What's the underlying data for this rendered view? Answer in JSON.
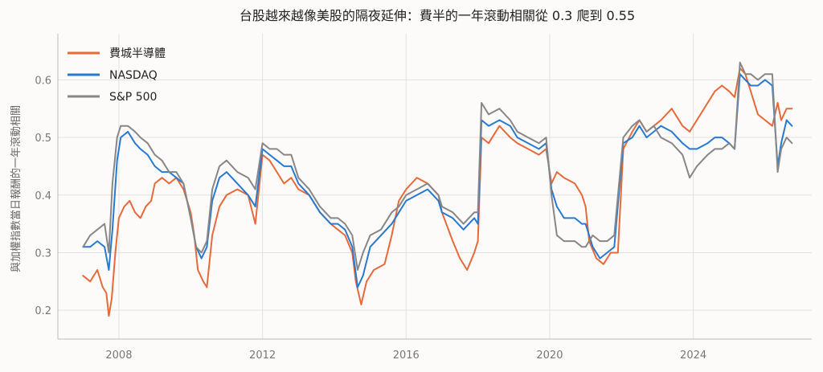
{
  "chart_data": {
    "type": "line",
    "title": "台股越來越像美股的隔夜延伸：費半的一年滾動相關從 0.3 爬到 0.55",
    "xlabel": "",
    "ylabel": "與加權指數當日報酬的一年滾動相關",
    "xlim": [
      2006.3,
      2027.3
    ],
    "ylim": [
      0.15,
      0.68
    ],
    "x_ticks": [
      2008,
      2012,
      2016,
      2020,
      2024
    ],
    "x_tick_labels": [
      "2008",
      "2012",
      "2016",
      "2020",
      "2024"
    ],
    "y_ticks": [
      0.2,
      0.3,
      0.4,
      0.5,
      0.6
    ],
    "y_tick_labels": [
      "0.2",
      "0.3",
      "0.4",
      "0.5",
      "0.6"
    ],
    "grid": true,
    "legend_position": "top-left",
    "series": [
      {
        "name": "費城半導體",
        "color": "#e8693a",
        "points": [
          [
            2007.0,
            0.26
          ],
          [
            2007.2,
            0.25
          ],
          [
            2007.4,
            0.27
          ],
          [
            2007.55,
            0.24
          ],
          [
            2007.65,
            0.23
          ],
          [
            2007.72,
            0.19
          ],
          [
            2007.8,
            0.22
          ],
          [
            2007.9,
            0.3
          ],
          [
            2008.0,
            0.36
          ],
          [
            2008.15,
            0.38
          ],
          [
            2008.3,
            0.39
          ],
          [
            2008.45,
            0.37
          ],
          [
            2008.6,
            0.36
          ],
          [
            2008.75,
            0.38
          ],
          [
            2008.9,
            0.39
          ],
          [
            2009.0,
            0.42
          ],
          [
            2009.2,
            0.43
          ],
          [
            2009.4,
            0.42
          ],
          [
            2009.6,
            0.43
          ],
          [
            2009.8,
            0.41
          ],
          [
            2010.0,
            0.37
          ],
          [
            2010.1,
            0.33
          ],
          [
            2010.2,
            0.27
          ],
          [
            2010.35,
            0.25
          ],
          [
            2010.45,
            0.24
          ],
          [
            2010.6,
            0.33
          ],
          [
            2010.8,
            0.38
          ],
          [
            2011.0,
            0.4
          ],
          [
            2011.3,
            0.41
          ],
          [
            2011.6,
            0.4
          ],
          [
            2011.8,
            0.35
          ],
          [
            2012.0,
            0.47
          ],
          [
            2012.2,
            0.46
          ],
          [
            2012.4,
            0.44
          ],
          [
            2012.6,
            0.42
          ],
          [
            2012.8,
            0.43
          ],
          [
            2013.0,
            0.41
          ],
          [
            2013.3,
            0.4
          ],
          [
            2013.6,
            0.37
          ],
          [
            2013.9,
            0.35
          ],
          [
            2014.1,
            0.34
          ],
          [
            2014.3,
            0.33
          ],
          [
            2014.5,
            0.3
          ],
          [
            2014.6,
            0.25
          ],
          [
            2014.75,
            0.21
          ],
          [
            2014.9,
            0.25
          ],
          [
            2015.1,
            0.27
          ],
          [
            2015.4,
            0.28
          ],
          [
            2015.6,
            0.33
          ],
          [
            2015.8,
            0.39
          ],
          [
            2016.0,
            0.41
          ],
          [
            2016.3,
            0.43
          ],
          [
            2016.6,
            0.42
          ],
          [
            2016.9,
            0.4
          ],
          [
            2017.0,
            0.37
          ],
          [
            2017.3,
            0.32
          ],
          [
            2017.5,
            0.29
          ],
          [
            2017.7,
            0.27
          ],
          [
            2017.9,
            0.3
          ],
          [
            2018.0,
            0.32
          ],
          [
            2018.1,
            0.5
          ],
          [
            2018.3,
            0.49
          ],
          [
            2018.6,
            0.52
          ],
          [
            2018.9,
            0.5
          ],
          [
            2019.1,
            0.49
          ],
          [
            2019.4,
            0.48
          ],
          [
            2019.7,
            0.47
          ],
          [
            2019.9,
            0.48
          ],
          [
            2020.05,
            0.42
          ],
          [
            2020.2,
            0.44
          ],
          [
            2020.4,
            0.43
          ],
          [
            2020.7,
            0.42
          ],
          [
            2020.9,
            0.4
          ],
          [
            2021.0,
            0.38
          ],
          [
            2021.1,
            0.32
          ],
          [
            2021.3,
            0.29
          ],
          [
            2021.5,
            0.28
          ],
          [
            2021.7,
            0.3
          ],
          [
            2021.9,
            0.3
          ],
          [
            2022.05,
            0.48
          ],
          [
            2022.3,
            0.51
          ],
          [
            2022.5,
            0.53
          ],
          [
            2022.7,
            0.51
          ],
          [
            2022.9,
            0.52
          ],
          [
            2023.1,
            0.53
          ],
          [
            2023.4,
            0.55
          ],
          [
            2023.7,
            0.52
          ],
          [
            2023.9,
            0.51
          ],
          [
            2024.1,
            0.53
          ],
          [
            2024.4,
            0.56
          ],
          [
            2024.6,
            0.58
          ],
          [
            2024.8,
            0.59
          ],
          [
            2025.0,
            0.58
          ],
          [
            2025.15,
            0.57
          ],
          [
            2025.3,
            0.62
          ],
          [
            2025.45,
            0.61
          ],
          [
            2025.6,
            0.58
          ],
          [
            2025.8,
            0.54
          ],
          [
            2026.0,
            0.53
          ],
          [
            2026.2,
            0.52
          ],
          [
            2026.35,
            0.56
          ],
          [
            2026.45,
            0.53
          ],
          [
            2026.6,
            0.55
          ],
          [
            2026.75,
            0.55
          ]
        ]
      },
      {
        "name": "NASDAQ",
        "color": "#2879d0",
        "points": [
          [
            2007.0,
            0.31
          ],
          [
            2007.2,
            0.31
          ],
          [
            2007.4,
            0.32
          ],
          [
            2007.6,
            0.31
          ],
          [
            2007.72,
            0.27
          ],
          [
            2007.82,
            0.34
          ],
          [
            2007.95,
            0.46
          ],
          [
            2008.05,
            0.5
          ],
          [
            2008.25,
            0.51
          ],
          [
            2008.45,
            0.49
          ],
          [
            2008.6,
            0.48
          ],
          [
            2008.8,
            0.47
          ],
          [
            2009.0,
            0.45
          ],
          [
            2009.2,
            0.44
          ],
          [
            2009.4,
            0.44
          ],
          [
            2009.6,
            0.43
          ],
          [
            2009.8,
            0.42
          ],
          [
            2010.0,
            0.36
          ],
          [
            2010.15,
            0.31
          ],
          [
            2010.3,
            0.29
          ],
          [
            2010.45,
            0.31
          ],
          [
            2010.6,
            0.39
          ],
          [
            2010.8,
            0.43
          ],
          [
            2011.0,
            0.44
          ],
          [
            2011.3,
            0.42
          ],
          [
            2011.6,
            0.4
          ],
          [
            2011.8,
            0.38
          ],
          [
            2012.0,
            0.48
          ],
          [
            2012.2,
            0.47
          ],
          [
            2012.4,
            0.46
          ],
          [
            2012.6,
            0.45
          ],
          [
            2012.8,
            0.45
          ],
          [
            2013.0,
            0.42
          ],
          [
            2013.3,
            0.4
          ],
          [
            2013.6,
            0.37
          ],
          [
            2013.9,
            0.35
          ],
          [
            2014.1,
            0.35
          ],
          [
            2014.3,
            0.34
          ],
          [
            2014.5,
            0.31
          ],
          [
            2014.65,
            0.24
          ],
          [
            2014.8,
            0.26
          ],
          [
            2015.0,
            0.31
          ],
          [
            2015.3,
            0.33
          ],
          [
            2015.6,
            0.35
          ],
          [
            2015.8,
            0.37
          ],
          [
            2016.0,
            0.39
          ],
          [
            2016.3,
            0.4
          ],
          [
            2016.6,
            0.41
          ],
          [
            2016.9,
            0.39
          ],
          [
            2017.0,
            0.37
          ],
          [
            2017.3,
            0.36
          ],
          [
            2017.6,
            0.34
          ],
          [
            2017.9,
            0.36
          ],
          [
            2018.0,
            0.35
          ],
          [
            2018.1,
            0.53
          ],
          [
            2018.3,
            0.52
          ],
          [
            2018.6,
            0.53
          ],
          [
            2018.9,
            0.52
          ],
          [
            2019.1,
            0.5
          ],
          [
            2019.4,
            0.49
          ],
          [
            2019.7,
            0.48
          ],
          [
            2019.9,
            0.49
          ],
          [
            2020.05,
            0.41
          ],
          [
            2020.2,
            0.38
          ],
          [
            2020.4,
            0.36
          ],
          [
            2020.7,
            0.36
          ],
          [
            2020.9,
            0.35
          ],
          [
            2021.0,
            0.35
          ],
          [
            2021.2,
            0.31
          ],
          [
            2021.4,
            0.29
          ],
          [
            2021.6,
            0.3
          ],
          [
            2021.8,
            0.31
          ],
          [
            2022.05,
            0.49
          ],
          [
            2022.3,
            0.5
          ],
          [
            2022.5,
            0.52
          ],
          [
            2022.7,
            0.5
          ],
          [
            2022.9,
            0.51
          ],
          [
            2023.1,
            0.52
          ],
          [
            2023.4,
            0.51
          ],
          [
            2023.7,
            0.49
          ],
          [
            2023.9,
            0.48
          ],
          [
            2024.1,
            0.48
          ],
          [
            2024.4,
            0.49
          ],
          [
            2024.6,
            0.5
          ],
          [
            2024.8,
            0.5
          ],
          [
            2025.0,
            0.49
          ],
          [
            2025.15,
            0.48
          ],
          [
            2025.3,
            0.61
          ],
          [
            2025.45,
            0.6
          ],
          [
            2025.6,
            0.59
          ],
          [
            2025.8,
            0.59
          ],
          [
            2026.0,
            0.6
          ],
          [
            2026.2,
            0.59
          ],
          [
            2026.35,
            0.45
          ],
          [
            2026.45,
            0.49
          ],
          [
            2026.6,
            0.53
          ],
          [
            2026.75,
            0.52
          ]
        ]
      },
      {
        "name": "S&P 500",
        "color": "#878787",
        "points": [
          [
            2007.0,
            0.31
          ],
          [
            2007.2,
            0.33
          ],
          [
            2007.4,
            0.34
          ],
          [
            2007.6,
            0.35
          ],
          [
            2007.72,
            0.3
          ],
          [
            2007.82,
            0.42
          ],
          [
            2007.95,
            0.5
          ],
          [
            2008.05,
            0.52
          ],
          [
            2008.25,
            0.52
          ],
          [
            2008.45,
            0.51
          ],
          [
            2008.6,
            0.5
          ],
          [
            2008.8,
            0.49
          ],
          [
            2009.0,
            0.47
          ],
          [
            2009.2,
            0.46
          ],
          [
            2009.4,
            0.44
          ],
          [
            2009.6,
            0.44
          ],
          [
            2009.8,
            0.42
          ],
          [
            2010.0,
            0.36
          ],
          [
            2010.15,
            0.31
          ],
          [
            2010.3,
            0.3
          ],
          [
            2010.45,
            0.32
          ],
          [
            2010.6,
            0.41
          ],
          [
            2010.8,
            0.45
          ],
          [
            2011.0,
            0.46
          ],
          [
            2011.3,
            0.44
          ],
          [
            2011.6,
            0.43
          ],
          [
            2011.8,
            0.41
          ],
          [
            2012.0,
            0.49
          ],
          [
            2012.2,
            0.48
          ],
          [
            2012.4,
            0.48
          ],
          [
            2012.6,
            0.47
          ],
          [
            2012.8,
            0.47
          ],
          [
            2013.0,
            0.43
          ],
          [
            2013.3,
            0.41
          ],
          [
            2013.6,
            0.38
          ],
          [
            2013.9,
            0.36
          ],
          [
            2014.1,
            0.36
          ],
          [
            2014.3,
            0.35
          ],
          [
            2014.5,
            0.33
          ],
          [
            2014.65,
            0.27
          ],
          [
            2014.8,
            0.3
          ],
          [
            2015.0,
            0.33
          ],
          [
            2015.3,
            0.34
          ],
          [
            2015.6,
            0.37
          ],
          [
            2015.8,
            0.38
          ],
          [
            2016.0,
            0.4
          ],
          [
            2016.3,
            0.41
          ],
          [
            2016.6,
            0.42
          ],
          [
            2016.9,
            0.4
          ],
          [
            2017.0,
            0.38
          ],
          [
            2017.3,
            0.37
          ],
          [
            2017.6,
            0.35
          ],
          [
            2017.9,
            0.37
          ],
          [
            2018.0,
            0.37
          ],
          [
            2018.1,
            0.56
          ],
          [
            2018.3,
            0.54
          ],
          [
            2018.6,
            0.55
          ],
          [
            2018.9,
            0.53
          ],
          [
            2019.1,
            0.51
          ],
          [
            2019.4,
            0.5
          ],
          [
            2019.7,
            0.49
          ],
          [
            2019.9,
            0.5
          ],
          [
            2020.05,
            0.4
          ],
          [
            2020.2,
            0.33
          ],
          [
            2020.4,
            0.32
          ],
          [
            2020.7,
            0.32
          ],
          [
            2020.9,
            0.31
          ],
          [
            2021.0,
            0.31
          ],
          [
            2021.2,
            0.33
          ],
          [
            2021.4,
            0.32
          ],
          [
            2021.6,
            0.32
          ],
          [
            2021.8,
            0.33
          ],
          [
            2022.05,
            0.5
          ],
          [
            2022.3,
            0.52
          ],
          [
            2022.5,
            0.53
          ],
          [
            2022.7,
            0.51
          ],
          [
            2022.9,
            0.52
          ],
          [
            2023.1,
            0.5
          ],
          [
            2023.4,
            0.49
          ],
          [
            2023.7,
            0.47
          ],
          [
            2023.9,
            0.43
          ],
          [
            2024.1,
            0.45
          ],
          [
            2024.4,
            0.47
          ],
          [
            2024.6,
            0.48
          ],
          [
            2024.8,
            0.48
          ],
          [
            2025.0,
            0.49
          ],
          [
            2025.15,
            0.48
          ],
          [
            2025.3,
            0.63
          ],
          [
            2025.45,
            0.61
          ],
          [
            2025.6,
            0.61
          ],
          [
            2025.8,
            0.6
          ],
          [
            2026.0,
            0.61
          ],
          [
            2026.2,
            0.61
          ],
          [
            2026.35,
            0.44
          ],
          [
            2026.45,
            0.48
          ],
          [
            2026.6,
            0.5
          ],
          [
            2026.75,
            0.49
          ]
        ]
      }
    ]
  }
}
